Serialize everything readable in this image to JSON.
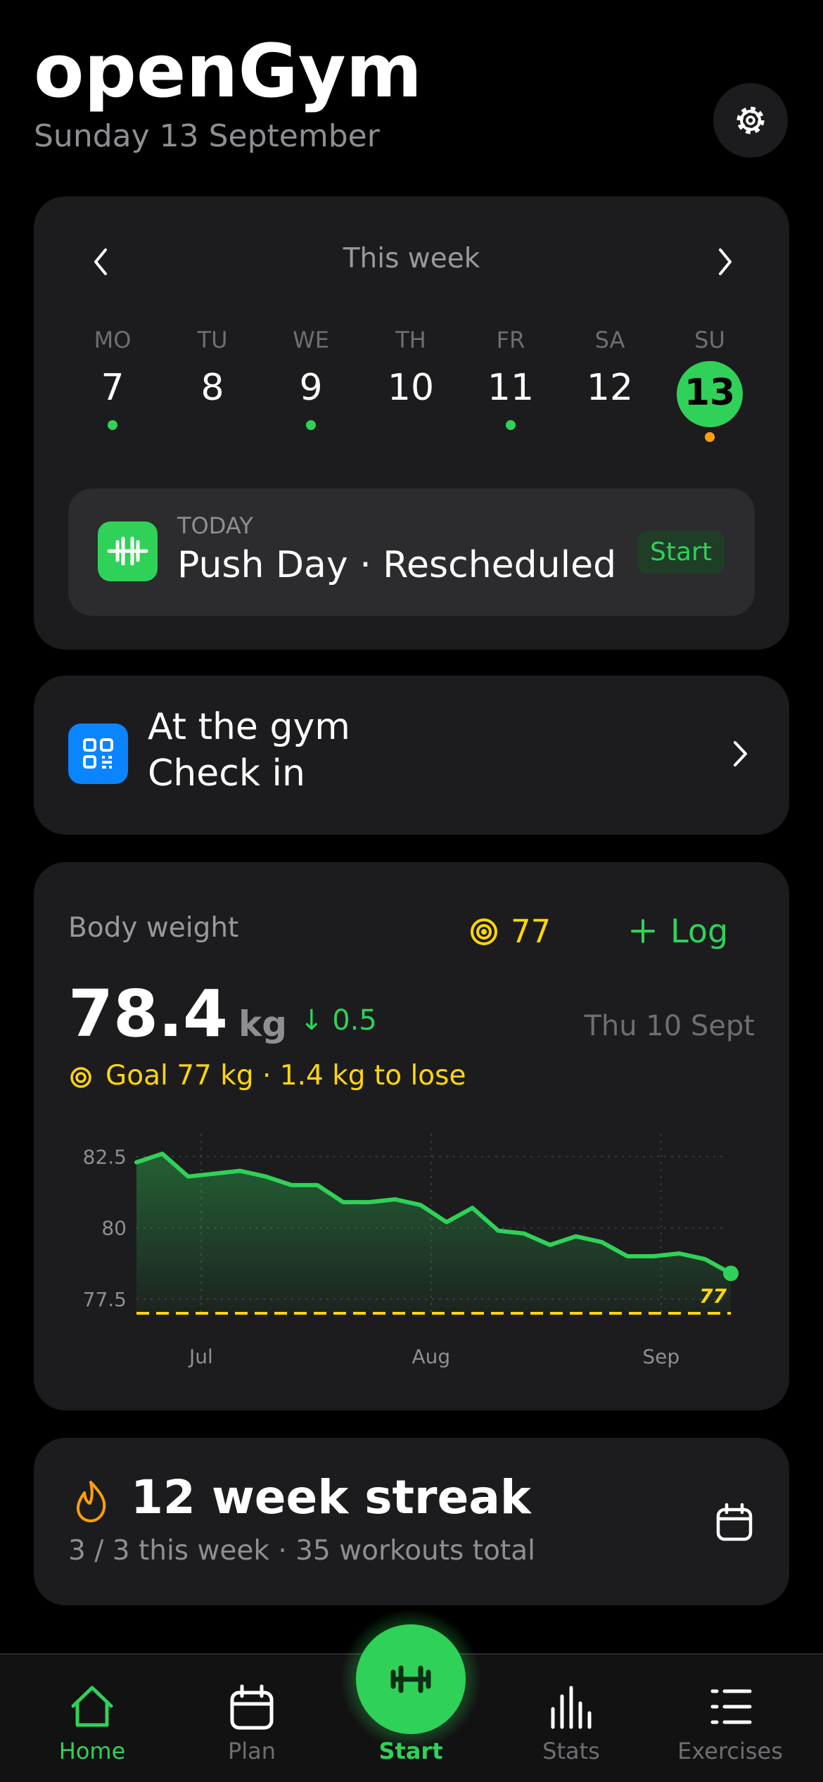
{
  "header": {
    "title": "openGym",
    "date": "Sunday 13 September"
  },
  "week": {
    "title": "This week",
    "days": [
      {
        "label": "MO",
        "date": "7",
        "status": "done"
      },
      {
        "label": "TU",
        "date": "8"
      },
      {
        "label": "WE",
        "date": "9",
        "status": "done"
      },
      {
        "label": "TH",
        "date": "10"
      },
      {
        "label": "FR",
        "date": "11",
        "status": "done"
      },
      {
        "label": "SA",
        "date": "12"
      },
      {
        "label": "SU",
        "date": "13",
        "status": "planned",
        "selected": true
      }
    ]
  },
  "today": {
    "label": "TODAY",
    "workout": "Push Day · Rescheduled",
    "action": "Start"
  },
  "checkin": {
    "title": "At the gym",
    "subtitle": "Check in"
  },
  "body_weight": {
    "title": "Body weight",
    "target": "77",
    "action": "Log",
    "current": "78.4",
    "unit": "kg",
    "change": "↓ 0.5",
    "date": "Thu 10 Sept",
    "goal_text": "Goal 77 kg · 1.4 kg to lose"
  },
  "chart_data": {
    "type": "line",
    "values": [
      82.3,
      82.6,
      81.8,
      81.9,
      82.0,
      81.8,
      81.5,
      81.5,
      80.9,
      80.9,
      81.0,
      80.8,
      80.2,
      80.7,
      79.9,
      79.8,
      79.4,
      79.7,
      79.5,
      79.0,
      79.0,
      79.1,
      78.9,
      78.4
    ],
    "color": "#30d158",
    "xlim": [
      0,
      23
    ],
    "xticks": [
      {
        "value": 2.5,
        "label": "Jul"
      },
      {
        "value": 11.4,
        "label": "Aug"
      },
      {
        "value": 20.3,
        "label": "Sep"
      }
    ],
    "ylim": [
      77,
      83.3
    ],
    "yticks": [
      77.5,
      80,
      82.5
    ],
    "grid": true,
    "goal": 77,
    "goal_color": "#ffd60a"
  },
  "streak": {
    "title": "12 week streak",
    "subtitle": "3 / 3 this week · 35 workouts total"
  },
  "nav": {
    "items": [
      "Home",
      "Plan",
      "Start",
      "Stats",
      "Exercises"
    ],
    "active": 0
  }
}
